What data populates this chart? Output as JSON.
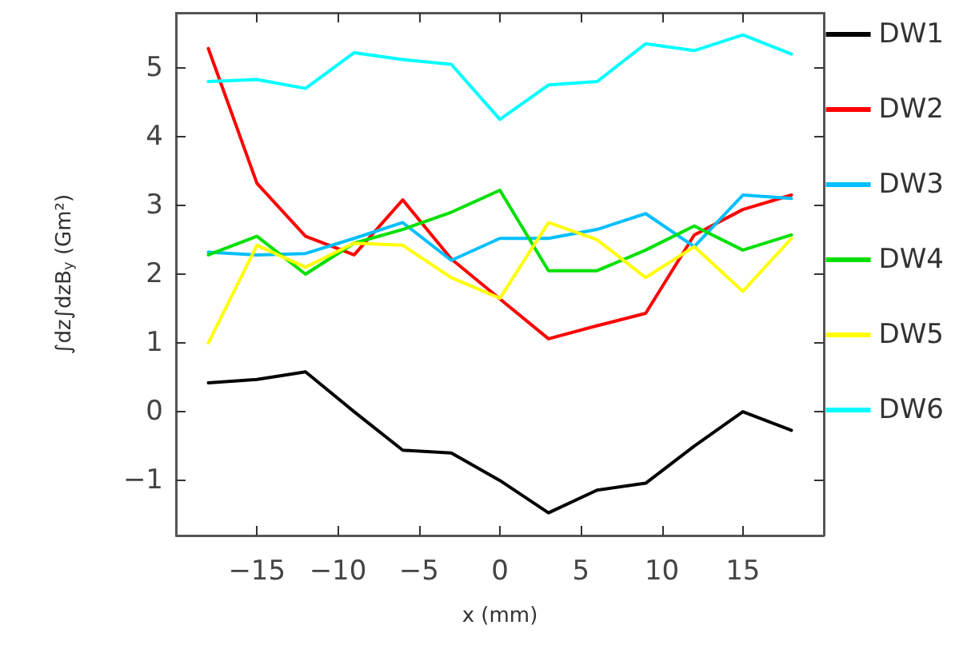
{
  "chart_data": {
    "type": "line",
    "xlabel": "x (mm)",
    "ylabel": "∫dz∫dzB$_{y}$ (Gm²)",
    "x": [
      -18,
      -15,
      -12,
      -9,
      -6,
      -3,
      0,
      3,
      6,
      9,
      12,
      15,
      18
    ],
    "series": [
      {
        "name": "DW1",
        "color": "#000000",
        "values": [
          0.42,
          0.47,
          0.58,
          0.0,
          -0.56,
          -0.6,
          -1.0,
          -1.47,
          -1.14,
          -1.04,
          -0.5,
          0.0,
          -0.27
        ]
      },
      {
        "name": "DW2",
        "color": "#ff0000",
        "values": [
          5.28,
          3.32,
          2.55,
          2.28,
          3.08,
          2.22,
          1.64,
          1.06,
          1.25,
          1.43,
          2.57,
          2.94,
          3.15
        ]
      },
      {
        "name": "DW3",
        "color": "#00bfff",
        "values": [
          2.32,
          2.28,
          2.3,
          2.52,
          2.75,
          2.2,
          2.52,
          2.52,
          2.65,
          2.88,
          2.4,
          3.15,
          3.1
        ]
      },
      {
        "name": "DW4",
        "color": "#00e000",
        "values": [
          2.28,
          2.55,
          2.0,
          2.45,
          2.65,
          2.9,
          3.22,
          2.05,
          2.05,
          2.35,
          2.7,
          2.35,
          2.57
        ]
      },
      {
        "name": "DW5",
        "color": "#ffff00",
        "values": [
          1.0,
          2.42,
          2.1,
          2.45,
          2.42,
          1.95,
          1.65,
          2.75,
          2.5,
          1.95,
          2.4,
          1.75,
          2.52
        ]
      },
      {
        "name": "DW6",
        "color": "#00ffff",
        "values": [
          4.8,
          4.83,
          4.7,
          5.22,
          5.12,
          5.05,
          4.25,
          4.75,
          4.8,
          5.35,
          5.25,
          5.48,
          5.2
        ]
      }
    ],
    "xlim": [
      -20,
      20
    ],
    "xticks": [
      -15,
      -10,
      -5,
      0,
      5,
      10,
      15
    ],
    "ylim": [
      -1.8,
      5.8
    ],
    "yticks": [
      -1,
      0,
      1,
      2,
      3,
      4,
      5
    ],
    "grid": false,
    "legend": "right",
    "marker": "none",
    "line_style": "solid"
  }
}
